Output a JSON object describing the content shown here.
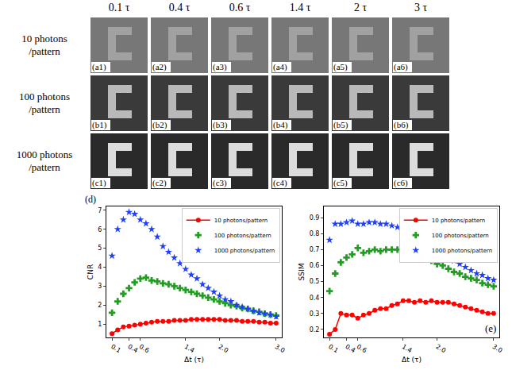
{
  "image_grid": {
    "column_heads": [
      "0.1 τ",
      "0.4 τ",
      "0.6 τ",
      "1.4 τ",
      "2 τ",
      "3 τ"
    ],
    "row_heads": [
      [
        "10 photons",
        "/pattern"
      ],
      [
        "100 photons",
        "/pattern"
      ],
      [
        "1000 photons",
        "/pattern"
      ]
    ],
    "panel_labels": [
      [
        "(a1)",
        "(a2)",
        "(a3)",
        "(a4)",
        "(a5)",
        "(a6)"
      ],
      [
        "(b1)",
        "(b2)",
        "(b3)",
        "(b4)",
        "(b5)",
        "(b6)"
      ],
      [
        "(c1)",
        "(c2)",
        "(c3)",
        "(c4)",
        "(c5)",
        "(c6)"
      ]
    ]
  },
  "chart_data": [
    {
      "type": "line",
      "annotation": "(d)",
      "xlabel": "Δt (τ)",
      "ylabel": "CNR",
      "x": [
        0.1,
        0.2,
        0.3,
        0.4,
        0.5,
        0.6,
        0.7,
        0.8,
        0.9,
        1.0,
        1.1,
        1.2,
        1.3,
        1.4,
        1.5,
        1.6,
        1.7,
        1.8,
        1.9,
        2.0,
        2.1,
        2.2,
        2.3,
        2.4,
        2.5,
        2.6,
        2.7,
        2.8,
        2.9,
        3.0
      ],
      "xlim": [
        0,
        3.1
      ],
      "xticks": [
        0.1,
        0.4,
        0.6,
        1.4,
        {
          "value": 2,
          "label": "2.0"
        },
        {
          "value": 3,
          "label": "3.0"
        }
      ],
      "ylim": [
        0.3,
        7.2
      ],
      "yticks": [
        1,
        2,
        3,
        4,
        5,
        6,
        7
      ],
      "grid": false,
      "legend": "upper right",
      "series": [
        {
          "name": "10 photons/pattern",
          "color": "#ff0000",
          "marker": "circle",
          "line_style": "solid",
          "values": [
            0.5,
            0.7,
            0.85,
            0.9,
            0.95,
            1.0,
            1.05,
            1.1,
            1.15,
            1.15,
            1.15,
            1.2,
            1.2,
            1.2,
            1.25,
            1.25,
            1.25,
            1.25,
            1.25,
            1.25,
            1.2,
            1.2,
            1.2,
            1.15,
            1.15,
            1.15,
            1.1,
            1.1,
            1.05,
            1.05
          ]
        },
        {
          "name": "100 photons/pattern",
          "color": "#1f9e1f",
          "marker": "cross",
          "line_style": "none",
          "values": [
            1.6,
            2.2,
            2.6,
            2.9,
            3.2,
            3.4,
            3.45,
            3.3,
            3.25,
            3.15,
            3.1,
            3.0,
            2.9,
            2.8,
            2.7,
            2.6,
            2.5,
            2.4,
            2.3,
            2.2,
            2.1,
            2.0,
            1.95,
            1.85,
            1.8,
            1.7,
            1.65,
            1.55,
            1.5,
            1.45
          ]
        },
        {
          "name": "1000 photons/pattern",
          "color": "#1f3fff",
          "marker": "star",
          "line_style": "none",
          "values": [
            4.6,
            6.0,
            6.5,
            6.9,
            6.8,
            6.5,
            6.3,
            6.0,
            5.6,
            5.1,
            4.8,
            4.5,
            4.2,
            3.9,
            3.6,
            3.4,
            3.1,
            2.9,
            2.7,
            2.5,
            2.3,
            2.2,
            2.0,
            1.9,
            1.8,
            1.7,
            1.6,
            1.55,
            1.5,
            1.4
          ]
        }
      ]
    },
    {
      "type": "line",
      "annotation": "(e)",
      "xlabel": "Δt (τ)",
      "ylabel": "SSIM",
      "x": [
        0.1,
        0.2,
        0.3,
        0.4,
        0.5,
        0.6,
        0.7,
        0.8,
        0.9,
        1.0,
        1.1,
        1.2,
        1.3,
        1.4,
        1.5,
        1.6,
        1.7,
        1.8,
        1.9,
        2.0,
        2.1,
        2.2,
        2.3,
        2.4,
        2.5,
        2.6,
        2.7,
        2.8,
        2.9,
        3.0
      ],
      "xlim": [
        0,
        3.1
      ],
      "xticks": [
        0.1,
        0.4,
        0.6,
        1.4,
        {
          "value": 2,
          "label": "2.0"
        },
        {
          "value": 3,
          "label": "3.0"
        }
      ],
      "ylim": [
        0.15,
        0.97
      ],
      "yticks": [
        0.2,
        0.3,
        0.4,
        0.5,
        0.6,
        0.7,
        0.8,
        0.9
      ],
      "grid": false,
      "legend": "upper right",
      "series": [
        {
          "name": "10 photons/pattern",
          "color": "#ff0000",
          "marker": "circle",
          "line_style": "solid",
          "values": [
            0.17,
            0.2,
            0.3,
            0.29,
            0.29,
            0.27,
            0.29,
            0.3,
            0.32,
            0.33,
            0.33,
            0.35,
            0.36,
            0.38,
            0.38,
            0.37,
            0.38,
            0.37,
            0.38,
            0.37,
            0.37,
            0.37,
            0.36,
            0.35,
            0.34,
            0.33,
            0.32,
            0.31,
            0.3,
            0.3
          ]
        },
        {
          "name": "100 photons/pattern",
          "color": "#1f9e1f",
          "marker": "cross",
          "line_style": "none",
          "values": [
            0.44,
            0.55,
            0.62,
            0.65,
            0.67,
            0.71,
            0.68,
            0.69,
            0.7,
            0.69,
            0.7,
            0.7,
            0.7,
            0.7,
            0.69,
            0.68,
            0.66,
            0.65,
            0.63,
            0.61,
            0.6,
            0.58,
            0.56,
            0.55,
            0.53,
            0.52,
            0.51,
            0.49,
            0.48,
            0.47
          ]
        },
        {
          "name": "1000 photons/pattern",
          "color": "#1f3fff",
          "marker": "star",
          "line_style": "none",
          "values": [
            0.76,
            0.86,
            0.86,
            0.87,
            0.88,
            0.86,
            0.86,
            0.87,
            0.87,
            0.86,
            0.86,
            0.85,
            0.84,
            0.82,
            0.8,
            0.78,
            0.76,
            0.74,
            0.71,
            0.69,
            0.67,
            0.65,
            0.63,
            0.61,
            0.59,
            0.57,
            0.55,
            0.54,
            0.52,
            0.51
          ]
        }
      ]
    }
  ]
}
